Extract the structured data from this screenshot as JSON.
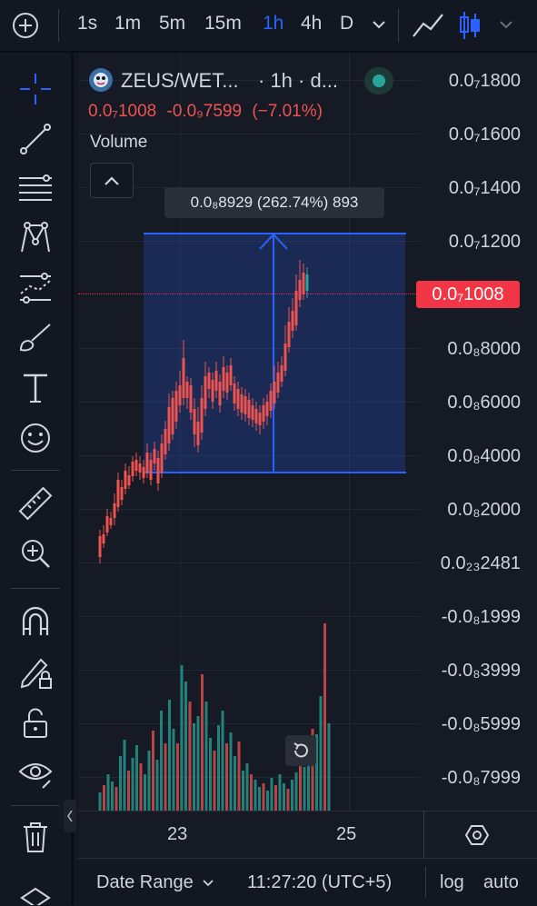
{
  "toolbar": {
    "timeframes": [
      "1s",
      "1m",
      "5m",
      "15m",
      "1h",
      "4h",
      "D"
    ],
    "active_timeframe": "1h"
  },
  "symbol": {
    "title": "ZEUS/WET...",
    "interval": "· 1h · d...",
    "last_price": "0.0₇1008",
    "change": "-0.0₉7599",
    "change_pct": "(−7.01%)",
    "status_color": "#26a69a"
  },
  "volume_label": "Volume",
  "measure_label": "0.0₈8929 (262.74%) 893",
  "price_axis": {
    "labels": [
      "0.0₇1800",
      "0.0₇1600",
      "0.0₇1400",
      "0.0₇1200",
      "0.0₈8000",
      "0.0₈6000",
      "0.0₈4000",
      "0.0₈2000",
      "0.0₂₃2481",
      "-0.0₈1999",
      "-0.0₈3999",
      "-0.0₈5999",
      "-0.0₈7999"
    ],
    "current_price_label": "0.0₇1008",
    "current_price_color": "#f23645"
  },
  "time_axis": {
    "labels": [
      "23",
      "25"
    ]
  },
  "bottom": {
    "date_range": "Date Range",
    "clock": "11:27:20 (UTC+5)",
    "log": "log",
    "auto": "auto"
  },
  "colors": {
    "up": "#26a69a",
    "down": "#ef5350",
    "accent": "#2962ff"
  },
  "icons": [
    "crosshair-icon",
    "trend-line-icon",
    "fib-icon",
    "pattern-icon",
    "prediction-icon",
    "brush-icon",
    "text-icon",
    "emoji-icon",
    "ruler-icon",
    "zoom-in-icon",
    "magnet-icon",
    "lock-drawing-icon",
    "unlock-icon",
    "eye-icon",
    "trash-icon"
  ]
}
